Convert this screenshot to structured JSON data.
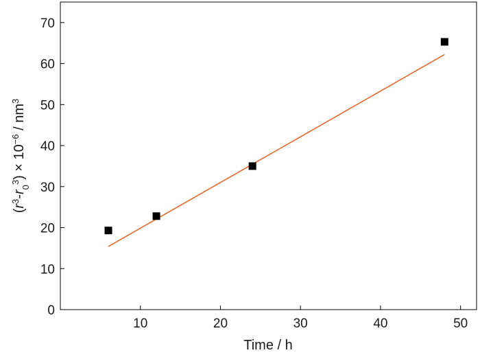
{
  "chart_data": {
    "type": "scatter",
    "xlabel": "Time / h",
    "ylabel": {
      "open": "(",
      "r": "r",
      "exp1": "3",
      "dash": "-",
      "r0": "r",
      "sub0": "0",
      "exp2": "3",
      "times": ") × 10",
      "exp3": "−6",
      "unit": " / nm",
      "exp4": "3"
    },
    "xlim": [
      0,
      52
    ],
    "ylim": [
      0,
      75
    ],
    "x_ticks": [
      10,
      20,
      30,
      40,
      50
    ],
    "y_ticks": [
      0,
      10,
      20,
      30,
      40,
      50,
      60,
      70
    ],
    "grid": false,
    "series": [
      {
        "kind": "points",
        "marker": "square",
        "color": "#000000",
        "points": [
          {
            "x": 6,
            "y": 19.3
          },
          {
            "x": 12,
            "y": 22.8
          },
          {
            "x": 24,
            "y": 35.0
          },
          {
            "x": 48,
            "y": 65.3
          }
        ]
      },
      {
        "kind": "fit-line",
        "color": "#e06a2c",
        "points": [
          {
            "x": 6,
            "y": 15.4
          },
          {
            "x": 48,
            "y": 62.2
          }
        ]
      }
    ]
  }
}
